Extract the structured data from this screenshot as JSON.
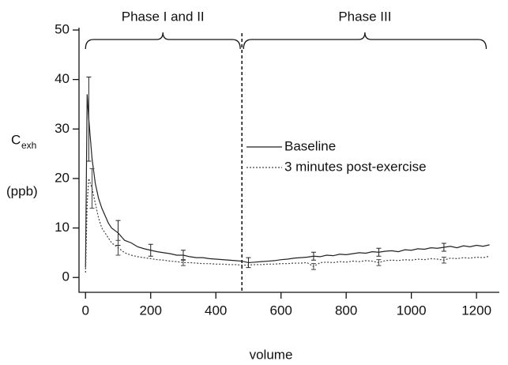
{
  "chart_data": {
    "type": "line",
    "x_label": "volume",
    "y_label": "C",
    "y_label_sub": "exh",
    "y_label_unit": "(ppb)",
    "xlim": [
      -20,
      1270
    ],
    "ylim": [
      -3,
      50
    ],
    "xticks": [
      0,
      200,
      400,
      600,
      800,
      1000,
      1200
    ],
    "yticks": [
      0,
      10,
      20,
      30,
      40,
      50
    ],
    "grid": false,
    "divider_x": 480,
    "phases": [
      {
        "label": "Phase I and II",
        "start": 0,
        "end": 475
      },
      {
        "label": "Phase III",
        "start": 485,
        "end": 1230
      }
    ],
    "x": [
      0,
      5,
      10,
      20,
      30,
      40,
      50,
      60,
      70,
      80,
      90,
      100,
      120,
      140,
      160,
      180,
      200,
      220,
      240,
      260,
      280,
      300,
      320,
      340,
      360,
      380,
      400,
      420,
      440,
      460,
      480,
      500,
      520,
      540,
      560,
      580,
      600,
      620,
      640,
      660,
      680,
      700,
      720,
      740,
      760,
      780,
      800,
      820,
      840,
      860,
      880,
      900,
      920,
      940,
      960,
      980,
      1000,
      1020,
      1040,
      1060,
      1080,
      1100,
      1120,
      1140,
      1160,
      1180,
      1200,
      1220,
      1240
    ],
    "series": [
      {
        "name": "Baseline",
        "color": "#222222",
        "dash": "solid",
        "values": [
          2,
          37,
          32,
          24,
          19,
          16,
          14,
          12.5,
          11,
          10,
          9.5,
          9,
          7.5,
          7,
          6.2,
          5.8,
          5.5,
          5.2,
          5,
          4.8,
          4.5,
          4.5,
          4.2,
          4,
          4,
          3.8,
          3.7,
          3.6,
          3.5,
          3.4,
          3.3,
          3,
          3.1,
          3.2,
          3.3,
          3.4,
          3.6,
          3.7,
          3.9,
          4,
          4.1,
          4.3,
          4.2,
          4.5,
          4.4,
          4.7,
          4.6,
          4.8,
          5,
          4.9,
          5.2,
          5.1,
          5.3,
          5.4,
          5.2,
          5.6,
          5.5,
          5.8,
          5.7,
          6,
          5.9,
          6.1,
          6.3,
          6,
          6.4,
          6.2,
          6.5,
          6.3,
          6.6
        ],
        "errors": [
          null,
          null,
          8.5,
          null,
          null,
          null,
          null,
          null,
          null,
          null,
          null,
          2.5,
          null,
          null,
          null,
          null,
          1.2,
          null,
          null,
          null,
          null,
          1,
          null,
          null,
          null,
          null,
          null,
          null,
          null,
          null,
          null,
          1,
          null,
          null,
          null,
          null,
          null,
          null,
          null,
          null,
          null,
          0.8,
          null,
          null,
          null,
          null,
          null,
          null,
          null,
          null,
          null,
          0.8,
          null,
          null,
          null,
          null,
          null,
          null,
          null,
          null,
          null,
          0.8,
          null,
          null,
          null,
          null,
          null,
          null,
          null
        ]
      },
      {
        "name": "3 minutes post-exercise",
        "color": "#444444",
        "dash": "dotted",
        "values": [
          1,
          15,
          20,
          18,
          15,
          12,
          10,
          9,
          8,
          7,
          6.5,
          6,
          5,
          4.5,
          4.2,
          4,
          3.8,
          3.6,
          3.5,
          3.3,
          3.2,
          3,
          3,
          2.9,
          2.8,
          2.8,
          2.7,
          2.7,
          2.6,
          2.6,
          2.5,
          2.5,
          2.6,
          2.6,
          2.7,
          2.7,
          2.8,
          2.8,
          2.9,
          2.9,
          3,
          2.2,
          3,
          3.1,
          3,
          3.2,
          3.1,
          3.3,
          3.2,
          3.4,
          3.3,
          3,
          3.4,
          3.5,
          3.4,
          3.6,
          3.5,
          3.7,
          3.6,
          3.8,
          3.7,
          3.5,
          3.9,
          3.8,
          4,
          3.9,
          4.1,
          4,
          4.3
        ],
        "errors": [
          null,
          null,
          null,
          4,
          null,
          null,
          null,
          null,
          null,
          null,
          null,
          1.5,
          null,
          null,
          null,
          null,
          null,
          null,
          null,
          null,
          null,
          0.6,
          null,
          null,
          null,
          null,
          null,
          null,
          null,
          null,
          null,
          null,
          null,
          null,
          null,
          null,
          null,
          null,
          null,
          null,
          null,
          0.6,
          null,
          null,
          null,
          null,
          null,
          null,
          null,
          null,
          null,
          0.6,
          null,
          null,
          null,
          null,
          null,
          null,
          null,
          null,
          null,
          0.6,
          null,
          null,
          null,
          null,
          null,
          null,
          null
        ]
      }
    ]
  }
}
